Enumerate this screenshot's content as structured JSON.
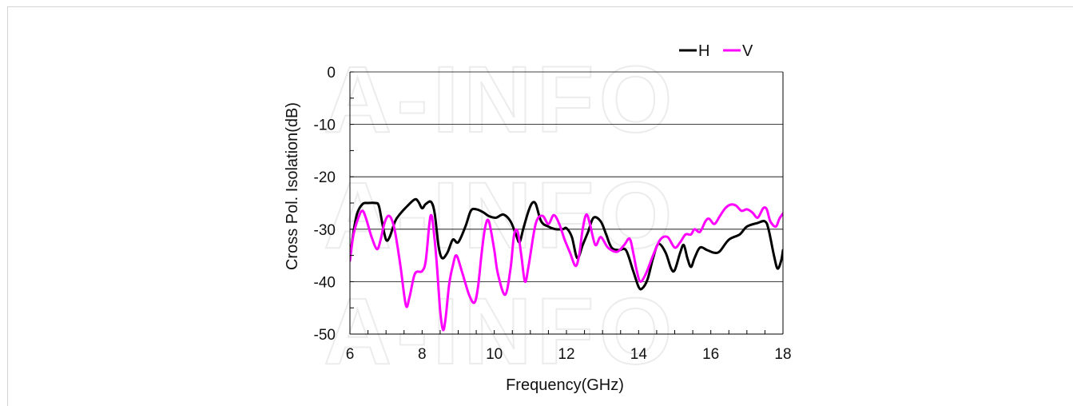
{
  "watermark": "A-INFO",
  "chart_data": {
    "type": "line",
    "xlabel": "Frequency(GHz)",
    "ylabel": "Cross Pol. Isolation(dB)",
    "xlim": [
      6,
      18
    ],
    "ylim": [
      -50,
      0
    ],
    "x_ticks": [
      6,
      8,
      10,
      12,
      14,
      16,
      18
    ],
    "y_ticks": [
      0,
      -10,
      -20,
      -30,
      -40,
      -50
    ],
    "grid": "horizontal",
    "legend": "top-right",
    "series": [
      {
        "name": "H",
        "color": "#000000",
        "points": [
          [
            6.0,
            -35.5
          ],
          [
            6.1,
            -30.5
          ],
          [
            6.2,
            -27.0
          ],
          [
            6.35,
            -25.2
          ],
          [
            6.5,
            -25.0
          ],
          [
            6.7,
            -25.0
          ],
          [
            6.8,
            -25.5
          ],
          [
            6.9,
            -29.0
          ],
          [
            7.0,
            -32.0
          ],
          [
            7.1,
            -31.5
          ],
          [
            7.25,
            -28.5
          ],
          [
            7.4,
            -27.0
          ],
          [
            7.6,
            -25.5
          ],
          [
            7.8,
            -24.3
          ],
          [
            7.9,
            -24.8
          ],
          [
            8.0,
            -26.0
          ],
          [
            8.1,
            -25.2
          ],
          [
            8.25,
            -24.8
          ],
          [
            8.35,
            -27.0
          ],
          [
            8.45,
            -33.0
          ],
          [
            8.55,
            -35.5
          ],
          [
            8.7,
            -34.5
          ],
          [
            8.85,
            -32.0
          ],
          [
            9.0,
            -32.5
          ],
          [
            9.2,
            -29.5
          ],
          [
            9.35,
            -26.5
          ],
          [
            9.5,
            -26.2
          ],
          [
            9.7,
            -26.8
          ],
          [
            9.85,
            -27.5
          ],
          [
            10.05,
            -27.8
          ],
          [
            10.25,
            -27.2
          ],
          [
            10.45,
            -28.5
          ],
          [
            10.6,
            -31.0
          ],
          [
            10.7,
            -32.5
          ],
          [
            10.8,
            -30.0
          ],
          [
            10.95,
            -26.5
          ],
          [
            11.05,
            -25.0
          ],
          [
            11.15,
            -25.2
          ],
          [
            11.3,
            -28.5
          ],
          [
            11.5,
            -29.5
          ],
          [
            11.7,
            -30.0
          ],
          [
            11.9,
            -30.0
          ],
          [
            12.0,
            -29.8
          ],
          [
            12.15,
            -31.5
          ],
          [
            12.3,
            -35.5
          ],
          [
            12.45,
            -33.0
          ],
          [
            12.6,
            -30.5
          ],
          [
            12.75,
            -27.8
          ],
          [
            12.95,
            -28.5
          ],
          [
            13.1,
            -31.0
          ],
          [
            13.25,
            -33.5
          ],
          [
            13.45,
            -34.0
          ],
          [
            13.65,
            -34.0
          ],
          [
            13.85,
            -38.0
          ],
          [
            14.0,
            -41.0
          ],
          [
            14.1,
            -41.3
          ],
          [
            14.25,
            -39.5
          ],
          [
            14.4,
            -35.5
          ],
          [
            14.55,
            -32.8
          ],
          [
            14.75,
            -34.5
          ],
          [
            14.9,
            -37.5
          ],
          [
            15.0,
            -37.8
          ],
          [
            15.15,
            -34.5
          ],
          [
            15.25,
            -33.0
          ],
          [
            15.35,
            -35.5
          ],
          [
            15.45,
            -37.2
          ],
          [
            15.55,
            -35.5
          ],
          [
            15.7,
            -33.5
          ],
          [
            15.9,
            -34.0
          ],
          [
            16.1,
            -34.5
          ],
          [
            16.25,
            -34.2
          ],
          [
            16.5,
            -32.0
          ],
          [
            16.8,
            -31.0
          ],
          [
            17.0,
            -29.5
          ],
          [
            17.3,
            -28.8
          ],
          [
            17.5,
            -28.5
          ],
          [
            17.6,
            -30.0
          ],
          [
            17.75,
            -35.0
          ],
          [
            17.85,
            -37.5
          ],
          [
            17.95,
            -36.0
          ],
          [
            18.0,
            -34.0
          ]
        ]
      },
      {
        "name": "V",
        "color": "#ff00ff",
        "points": [
          [
            6.0,
            -36.0
          ],
          [
            6.1,
            -31.0
          ],
          [
            6.25,
            -27.5
          ],
          [
            6.35,
            -26.5
          ],
          [
            6.45,
            -28.0
          ],
          [
            6.6,
            -31.5
          ],
          [
            6.75,
            -33.8
          ],
          [
            6.85,
            -32.0
          ],
          [
            6.95,
            -29.0
          ],
          [
            7.05,
            -27.5
          ],
          [
            7.15,
            -28.0
          ],
          [
            7.25,
            -30.5
          ],
          [
            7.4,
            -37.0
          ],
          [
            7.55,
            -44.5
          ],
          [
            7.65,
            -43.0
          ],
          [
            7.8,
            -38.5
          ],
          [
            8.0,
            -38.0
          ],
          [
            8.1,
            -36.0
          ],
          [
            8.2,
            -29.0
          ],
          [
            8.25,
            -27.3
          ],
          [
            8.3,
            -29.0
          ],
          [
            8.4,
            -36.0
          ],
          [
            8.5,
            -45.5
          ],
          [
            8.58,
            -49.2
          ],
          [
            8.65,
            -47.0
          ],
          [
            8.75,
            -40.5
          ],
          [
            8.85,
            -37.0
          ],
          [
            8.95,
            -35.0
          ],
          [
            9.1,
            -38.0
          ],
          [
            9.3,
            -42.5
          ],
          [
            9.45,
            -44.0
          ],
          [
            9.55,
            -41.0
          ],
          [
            9.65,
            -34.5
          ],
          [
            9.75,
            -29.5
          ],
          [
            9.85,
            -28.5
          ],
          [
            10.0,
            -34.0
          ],
          [
            10.1,
            -38.5
          ],
          [
            10.3,
            -42.5
          ],
          [
            10.45,
            -37.5
          ],
          [
            10.55,
            -31.0
          ],
          [
            10.65,
            -30.5
          ],
          [
            10.75,
            -35.0
          ],
          [
            10.85,
            -40.0
          ],
          [
            10.95,
            -37.0
          ],
          [
            11.1,
            -30.5
          ],
          [
            11.2,
            -28.0
          ],
          [
            11.35,
            -27.5
          ],
          [
            11.5,
            -29.0
          ],
          [
            11.65,
            -27.3
          ],
          [
            11.8,
            -29.0
          ],
          [
            11.95,
            -32.0
          ],
          [
            12.1,
            -34.5
          ],
          [
            12.25,
            -37.0
          ],
          [
            12.35,
            -35.0
          ],
          [
            12.45,
            -30.0
          ],
          [
            12.55,
            -27.2
          ],
          [
            12.65,
            -29.0
          ],
          [
            12.8,
            -33.0
          ],
          [
            12.95,
            -31.5
          ],
          [
            13.15,
            -33.5
          ],
          [
            13.4,
            -34.3
          ],
          [
            13.6,
            -33.0
          ],
          [
            13.75,
            -31.8
          ],
          [
            13.85,
            -34.5
          ],
          [
            13.95,
            -38.0
          ],
          [
            14.05,
            -40.0
          ],
          [
            14.2,
            -38.5
          ],
          [
            14.4,
            -35.0
          ],
          [
            14.6,
            -32.0
          ],
          [
            14.8,
            -31.5
          ],
          [
            15.0,
            -33.5
          ],
          [
            15.15,
            -32.5
          ],
          [
            15.3,
            -31.0
          ],
          [
            15.45,
            -31.0
          ],
          [
            15.55,
            -30.0
          ],
          [
            15.7,
            -30.5
          ],
          [
            15.85,
            -28.5
          ],
          [
            15.95,
            -28.0
          ],
          [
            16.1,
            -29.0
          ],
          [
            16.25,
            -27.5
          ],
          [
            16.4,
            -26.0
          ],
          [
            16.55,
            -25.3
          ],
          [
            16.7,
            -25.5
          ],
          [
            16.85,
            -26.5
          ],
          [
            17.0,
            -26.2
          ],
          [
            17.15,
            -26.8
          ],
          [
            17.3,
            -27.8
          ],
          [
            17.45,
            -26.0
          ],
          [
            17.55,
            -26.2
          ],
          [
            17.65,
            -28.5
          ],
          [
            17.8,
            -29.5
          ],
          [
            17.9,
            -28.0
          ],
          [
            18.0,
            -27.0
          ]
        ]
      }
    ]
  }
}
